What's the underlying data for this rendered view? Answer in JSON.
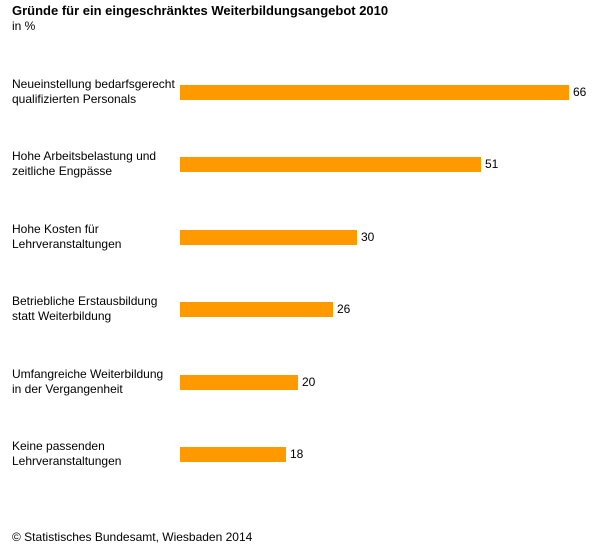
{
  "chart_data": {
    "type": "bar",
    "orientation": "horizontal",
    "title": "Gründe für ein eingeschränktes Weiterbildungsangebot 2010",
    "subtitle": "in %",
    "categories": [
      [
        "Neueinstellung bedarfsgerecht",
        "qualifizierten Personals"
      ],
      [
        "Hohe Arbeitsbelastung und",
        "zeitliche Engpässe"
      ],
      [
        "Hohe Kosten für",
        "Lehrveranstaltungen"
      ],
      [
        "Betriebliche Erstausbildung",
        "statt Weiterbildung"
      ],
      [
        "Umfangreiche Weiterbildung",
        "in der Vergangenheit"
      ],
      [
        "Keine passenden",
        "Lehrveranstaltungen"
      ]
    ],
    "values": [
      66,
      51,
      30,
      26,
      20,
      18
    ],
    "bar_color": "#ff9900",
    "grid": false,
    "legend": "none"
  },
  "source": "© Statistisches Bundesamt, Wiesbaden 2014"
}
